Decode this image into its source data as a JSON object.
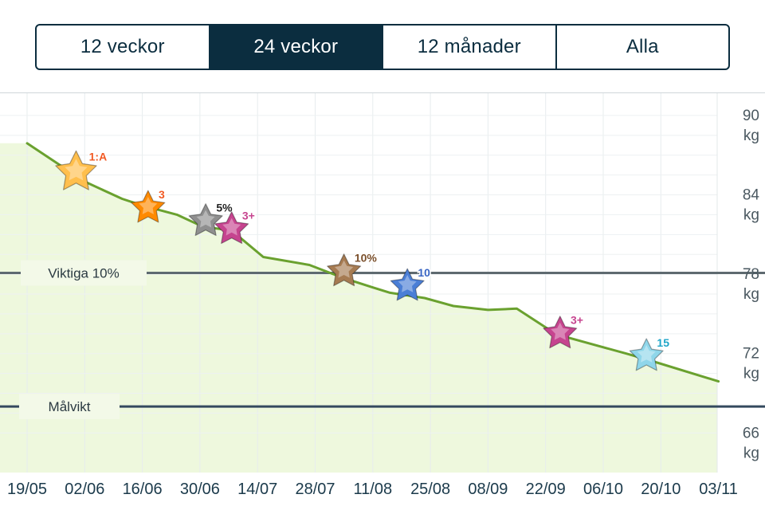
{
  "tabs": [
    {
      "label": "12 veckor",
      "active": false
    },
    {
      "label": "24 veckor",
      "active": true
    },
    {
      "label": "12 månader",
      "active": false
    },
    {
      "label": "Alla",
      "active": false
    }
  ],
  "colors": {
    "nav": "#0b2d3f",
    "line": "#6aa12f",
    "area": "#eef8dd",
    "goal_line": "#34495e",
    "ten_percent_line": "#5e6a70"
  },
  "chart_data": {
    "type": "line",
    "x_tick_labels": [
      "19/05",
      "02/06",
      "16/06",
      "30/06",
      "14/07",
      "28/07",
      "11/08",
      "25/08",
      "08/09",
      "22/09",
      "06/10",
      "20/10",
      "03/11"
    ],
    "y_tick_labels": [
      "90",
      "84",
      "78",
      "72",
      "66"
    ],
    "y_unit": "kg",
    "ylim": [
      64,
      91
    ],
    "grid": true,
    "series": [
      {
        "points": [
          [
            0.0,
            87.9
          ],
          [
            1.0,
            85.0
          ],
          [
            1.65,
            83.7
          ],
          [
            2.0,
            83.2
          ],
          [
            2.6,
            82.5
          ],
          [
            3.05,
            81.6
          ],
          [
            3.55,
            81.3
          ],
          [
            4.1,
            79.3
          ],
          [
            4.9,
            78.7
          ],
          [
            5.5,
            77.7
          ],
          [
            6.0,
            77.0
          ],
          [
            6.3,
            76.6
          ],
          [
            6.9,
            76.2
          ],
          [
            7.4,
            75.6
          ],
          [
            8.0,
            75.3
          ],
          [
            8.5,
            75.4
          ],
          [
            9.1,
            73.7
          ],
          [
            9.4,
            73.2
          ],
          [
            10.4,
            72.0
          ],
          [
            10.8,
            71.5
          ],
          [
            12.0,
            69.9
          ]
        ]
      }
    ],
    "reference_lines": [
      {
        "label": "Viktiga 10%",
        "y": 78.1
      },
      {
        "label": "Målvikt",
        "y": 68.0
      }
    ],
    "markers": [
      {
        "label": "1:A",
        "x": 0.85,
        "y": 85.7,
        "color": "#ffbf4d",
        "label_color": "#f15a24"
      },
      {
        "label": "3",
        "x": 2.1,
        "y": 83.0,
        "color": "#ff8a00",
        "label_color": "#f15a24"
      },
      {
        "label": "5%",
        "x": 3.1,
        "y": 82.0,
        "color": "#8f8f8f",
        "label_color": "#222222"
      },
      {
        "label": "3+",
        "x": 3.55,
        "y": 81.4,
        "color": "#c6448f",
        "label_color": "#c6448f"
      },
      {
        "label": "10%",
        "x": 5.5,
        "y": 78.2,
        "color": "#a67b52",
        "label_color": "#7a4f2b"
      },
      {
        "label": "10",
        "x": 6.6,
        "y": 77.1,
        "color": "#4a7ed6",
        "label_color": "#3a66c4"
      },
      {
        "label": "3+",
        "x": 9.25,
        "y": 73.5,
        "color": "#c6448f",
        "label_color": "#c6448f"
      },
      {
        "label": "15",
        "x": 10.75,
        "y": 71.8,
        "color": "#8fd6ea",
        "label_color": "#1fa5c8"
      }
    ]
  }
}
